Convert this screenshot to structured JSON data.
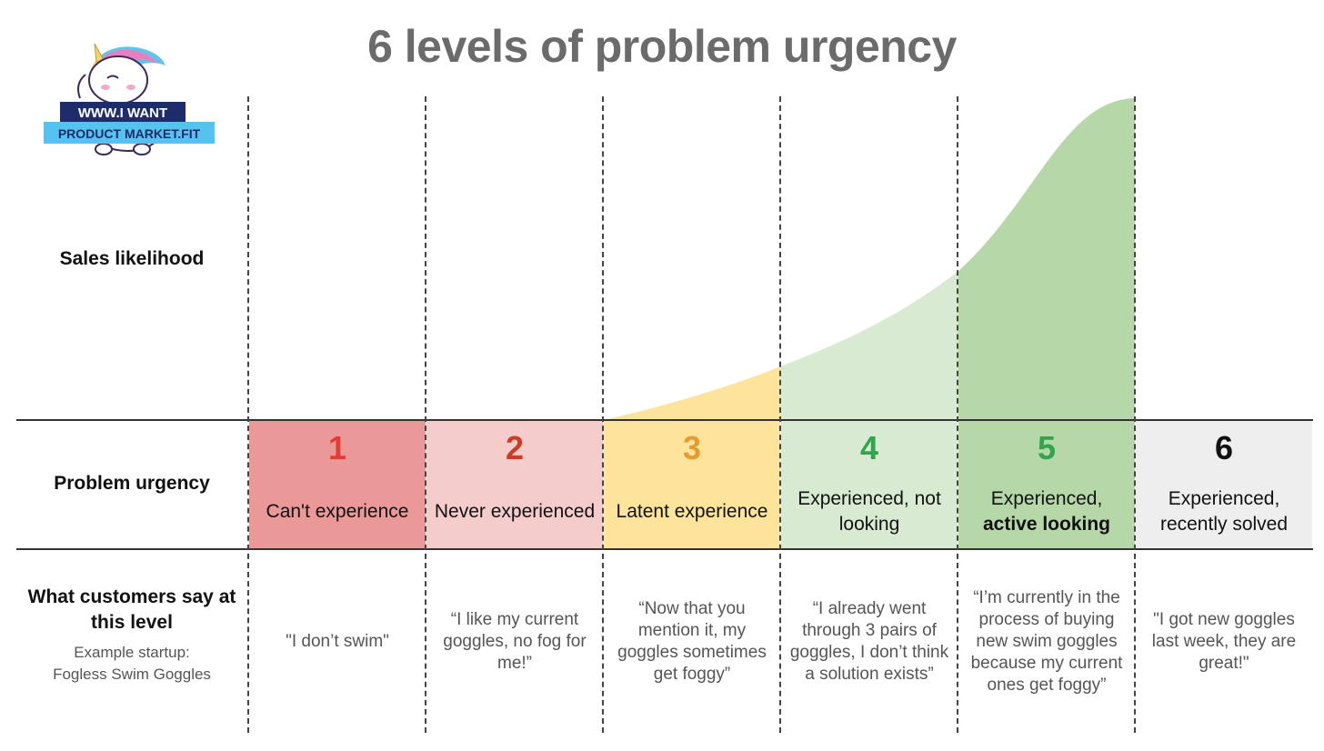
{
  "title": "6 levels of problem urgency",
  "logo": {
    "line1": "WWW.I WANT",
    "line2": "PRODUCT MARKET.FIT"
  },
  "rows": {
    "sales": "Sales likelihood",
    "urgency": "Problem urgency",
    "say_line1": "What customers say at",
    "say_line2": "this level",
    "example_line1": "Example startup:",
    "example_line2": "Fogless Swim Goggles"
  },
  "levels": [
    {
      "num": "1",
      "label1": "Can't experience",
      "label2": "",
      "q": [
        "\"I don’t swim\""
      ]
    },
    {
      "num": "2",
      "label1": "Never experienced",
      "label2": "",
      "q": [
        "“I like my current",
        "goggles, no fog for",
        "me!”"
      ]
    },
    {
      "num": "3",
      "label1": "Latent experience",
      "label2": "",
      "q": [
        "“Now that you",
        "mention it, my",
        "goggles sometimes",
        "get foggy”"
      ]
    },
    {
      "num": "4",
      "label1": "Experienced, not",
      "label2": "looking",
      "q": [
        "“I already went",
        "through 3 pairs of",
        "goggles, I don’t think",
        "a solution exists”"
      ]
    },
    {
      "num": "5",
      "label1": "Experienced,",
      "label2": "active looking",
      "q": [
        "“I’m currently in the",
        "process of buying",
        "new swim goggles",
        "because my current",
        "ones get foggy”"
      ]
    },
    {
      "num": "6",
      "label1": "Experienced,",
      "label2": "recently solved",
      "q": [
        "\"I got new goggles",
        "last week, they are",
        "great!\""
      ]
    }
  ],
  "colors": {
    "title": "#6b6b6b",
    "level_bg": [
      "#eb9898",
      "#f4cccc",
      "#fde49a",
      "#d9ead3",
      "#b6d7a8",
      "#eeeeee"
    ],
    "level_num": [
      "#e53b35",
      "#cc3b24",
      "#e69a30",
      "#2fa64a",
      "#2fa64a",
      "#111111"
    ],
    "curve": [
      "#fde49a",
      "#d9ead3",
      "#b6d7a8"
    ]
  },
  "icons": {
    "logo": "unicorn-mascot-icon"
  }
}
